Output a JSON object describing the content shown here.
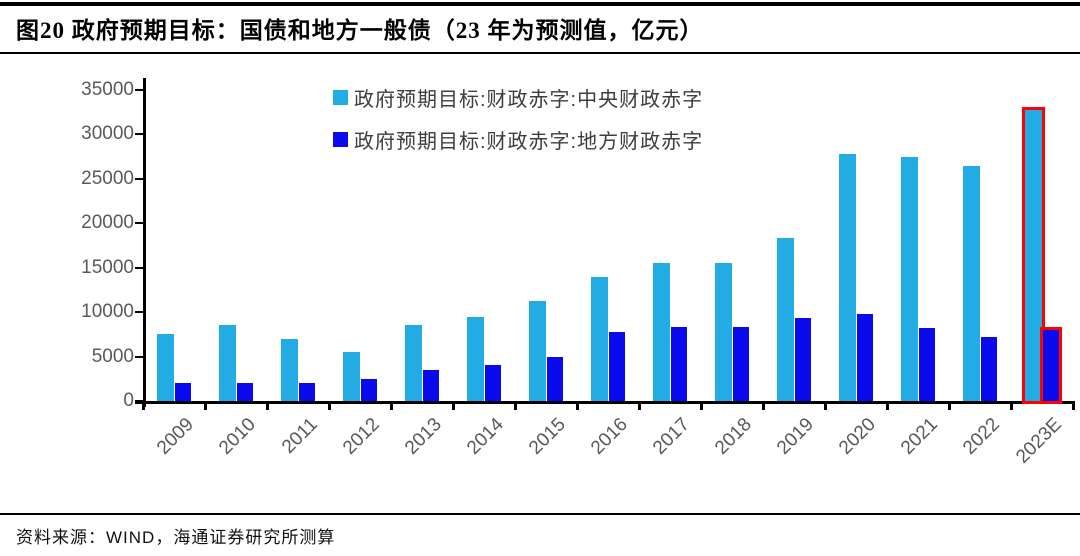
{
  "figure": {
    "title": "图20 政府预期目标：国债和地方一般债（23 年为预测值，亿元）",
    "source": "资料来源：WIND，海通证券研究所测算"
  },
  "chart_data": {
    "type": "bar",
    "title": "政府预期目标：国债和地方一般债（23 年为预测值，亿元）",
    "unit": "亿元",
    "categories": [
      "2009",
      "2010",
      "2011",
      "2012",
      "2013",
      "2014",
      "2015",
      "2016",
      "2017",
      "2018",
      "2019",
      "2020",
      "2021",
      "2022",
      "2023E"
    ],
    "series": [
      {
        "name": "政府预期目标:财政赤字:中央财政赤字",
        "color": "#22ACE3",
        "values": [
          7500,
          8500,
          7000,
          5500,
          8500,
          9500,
          11200,
          14000,
          15500,
          15500,
          18300,
          27800,
          27500,
          26500,
          32800
        ]
      },
      {
        "name": "政府预期目标:财政赤字:地方财政赤字",
        "color": "#0A0AEC",
        "values": [
          2000,
          2000,
          2000,
          2500,
          3500,
          4000,
          5000,
          7800,
          8300,
          8300,
          9300,
          9800,
          8200,
          7200,
          8000
        ]
      }
    ],
    "ylim": [
      0,
      35000
    ],
    "yticks": [
      0,
      5000,
      10000,
      15000,
      20000,
      25000,
      30000,
      35000
    ],
    "xlabel": "",
    "ylabel": "",
    "grid": false,
    "legend_position": "top-center",
    "highlight_category": "2023E",
    "highlight_color": "#FF0000",
    "axis_color": "#000000",
    "tick_label_color": "#595959"
  }
}
